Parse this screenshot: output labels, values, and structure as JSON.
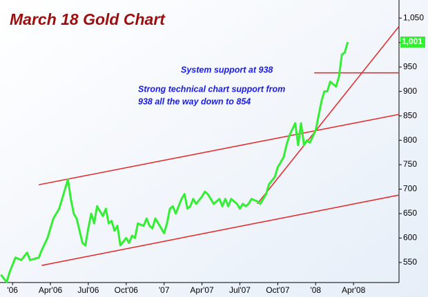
{
  "chart_data": {
    "type": "line",
    "title": "March 18 Gold Chart",
    "annotations": [
      {
        "lines": [
          "System support at 938"
        ]
      },
      {
        "lines": [
          "Strong technical chart support from",
          "938 all the way down to 854"
        ]
      }
    ],
    "x": [
      -4,
      -2,
      -1,
      1,
      3,
      5,
      6,
      9,
      10,
      12,
      14,
      16,
      18,
      19,
      20,
      21,
      22,
      24,
      25,
      26,
      27,
      28,
      29,
      31,
      32,
      33,
      34,
      35,
      36,
      37,
      39,
      40,
      41,
      42,
      43,
      45,
      46,
      47,
      48,
      49,
      50,
      52,
      53,
      54,
      55,
      56,
      58,
      59,
      60,
      61,
      62,
      63,
      65,
      66,
      67,
      68,
      69,
      71,
      72,
      73,
      74,
      75,
      77,
      78,
      79,
      80,
      81,
      82,
      84,
      85,
      86,
      87,
      88,
      90,
      91,
      92,
      93,
      94,
      95,
      97,
      98,
      99,
      100,
      101,
      102,
      104,
      105,
      106,
      107,
      108,
      109,
      111,
      112,
      113,
      114,
      115
    ],
    "series": [
      {
        "name": "Gold",
        "color": "#33ee33",
        "values": [
          525,
          510,
          530,
          560,
          555,
          570,
          555,
          560,
          575,
          600,
          640,
          660,
          700,
          720,
          680,
          650,
          640,
          590,
          585,
          620,
          650,
          630,
          665,
          645,
          660,
          630,
          635,
          615,
          625,
          585,
          600,
          590,
          605,
          600,
          630,
          625,
          640,
          625,
          620,
          640,
          630,
          610,
          630,
          660,
          665,
          650,
          680,
          690,
          660,
          665,
          680,
          670,
          685,
          695,
          690,
          680,
          670,
          680,
          665,
          680,
          665,
          680,
          670,
          660,
          670,
          665,
          670,
          680,
          675,
          670,
          680,
          690,
          710,
          725,
          745,
          755,
          765,
          790,
          810,
          835,
          790,
          835,
          790,
          800,
          795,
          820,
          850,
          880,
          900,
          900,
          920,
          910,
          930,
          975,
          980,
          1001
        ]
      }
    ],
    "trendlines": [
      {
        "x": [
          9,
          132.6
        ],
        "y": [
          709,
          853
        ]
      },
      {
        "x": [
          10,
          132.6
        ],
        "y": [
          544,
          688
        ]
      },
      {
        "x": [
          84,
          132.6
        ],
        "y": [
          670,
          1033
        ]
      },
      {
        "x": [
          103.5,
          132.6
        ],
        "y": [
          938,
          938
        ]
      }
    ],
    "trend_color": "#e03030",
    "last_label": {
      "value": 1001,
      "label": "1,001"
    },
    "xlim": [
      -4.3,
      132.6
    ],
    "xticks": [
      {
        "value": 0,
        "label": "'06"
      },
      {
        "value": 13,
        "label": "Apr'06"
      },
      {
        "value": 26,
        "label": "Jul'06"
      },
      {
        "value": 39,
        "label": "Oct'06"
      },
      {
        "value": 52,
        "label": "'07"
      },
      {
        "value": 65,
        "label": "Apr'07"
      },
      {
        "value": 78,
        "label": "Jul'07"
      },
      {
        "value": 91,
        "label": "Oct'07"
      },
      {
        "value": 104,
        "label": "'08"
      },
      {
        "value": 117,
        "label": "Apr'08"
      }
    ],
    "ylim": [
      509,
      1087
    ],
    "yticks": [
      550,
      600,
      650,
      700,
      750,
      800,
      850,
      900,
      950,
      {
        "value": 1000,
        "label": "1,000"
      },
      {
        "value": 1050,
        "label": "1,050"
      }
    ]
  }
}
